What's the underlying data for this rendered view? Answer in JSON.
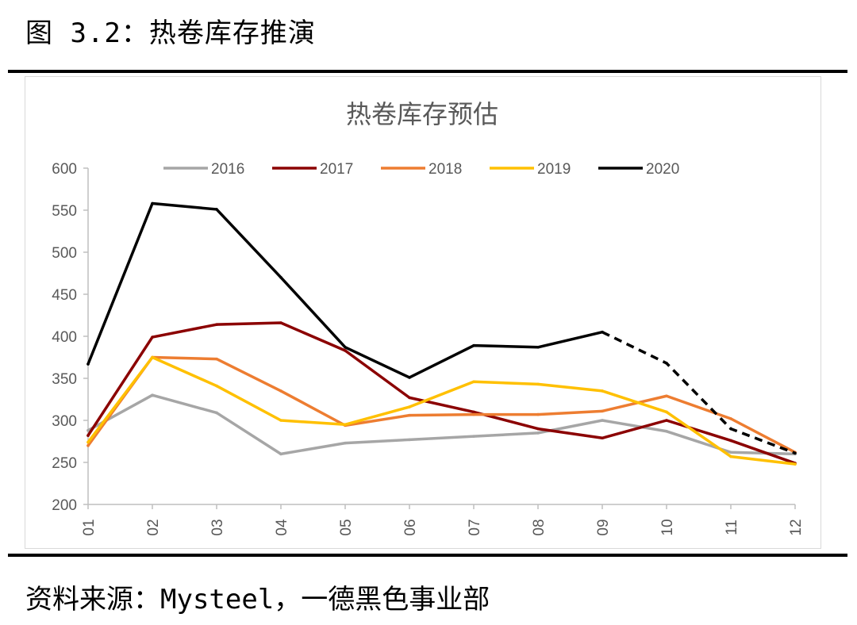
{
  "figure": {
    "caption": "图 3.2：热卷库存推演",
    "source": "资料来源：Mysteel，一德黑色事业部"
  },
  "chart_data": {
    "type": "line",
    "title": "热卷库存预估",
    "xlabel": "",
    "ylabel": "",
    "categories": [
      "01",
      "02",
      "03",
      "04",
      "05",
      "06",
      "07",
      "08",
      "09",
      "10",
      "11",
      "12"
    ],
    "ylim": [
      200,
      600
    ],
    "yticks": [
      200,
      250,
      300,
      350,
      400,
      450,
      500,
      550,
      600
    ],
    "grid": false,
    "legend_position": "top",
    "series": [
      {
        "name": "2016",
        "color": "#a6a6a6",
        "values": [
          288,
          330,
          309,
          260,
          273,
          277,
          281,
          285,
          300,
          287,
          262,
          260
        ]
      },
      {
        "name": "2017",
        "color": "#8b0000",
        "values": [
          282,
          399,
          414,
          416,
          383,
          327,
          310,
          290,
          279,
          300,
          276,
          249
        ]
      },
      {
        "name": "2018",
        "color": "#ed7d31",
        "values": [
          270,
          375,
          373,
          335,
          294,
          306,
          307,
          307,
          311,
          329,
          302,
          262
        ]
      },
      {
        "name": "2019",
        "color": "#ffc000",
        "values": [
          274,
          375,
          341,
          300,
          295,
          316,
          346,
          343,
          335,
          310,
          257,
          248
        ]
      },
      {
        "name": "2020",
        "color": "#000000",
        "values": [
          367,
          558,
          551,
          470,
          387,
          351,
          389,
          387,
          405,
          368,
          290,
          261
        ],
        "forecast_from_index": 8
      }
    ]
  }
}
